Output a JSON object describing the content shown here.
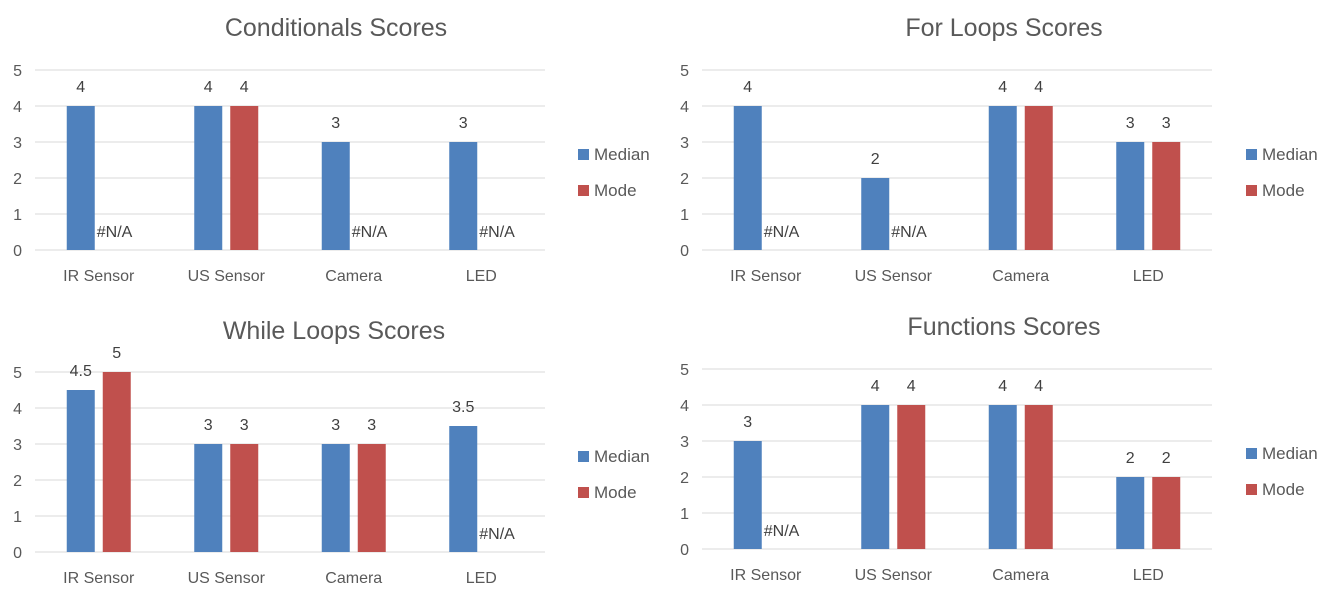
{
  "legend": {
    "median": "Median",
    "mode": "Mode"
  },
  "colors": {
    "median": "#4f81bd",
    "mode": "#c0504d"
  },
  "na_label": "#N/A",
  "chart_data": [
    {
      "type": "bar",
      "title": "Conditionals Scores",
      "categories": [
        "IR Sensor",
        "US Sensor",
        "Camera",
        "LED"
      ],
      "series": [
        {
          "name": "Median",
          "values": [
            4,
            4,
            3,
            3
          ]
        },
        {
          "name": "Mode",
          "values": [
            null,
            4,
            null,
            null
          ]
        }
      ],
      "ylim": [
        0,
        5
      ],
      "yticks": [
        0,
        1,
        2,
        3,
        4,
        5
      ],
      "grid": true,
      "legend_position": "right"
    },
    {
      "type": "bar",
      "title": "For Loops Scores",
      "categories": [
        "IR Sensor",
        "US Sensor",
        "Camera",
        "LED"
      ],
      "series": [
        {
          "name": "Median",
          "values": [
            4,
            2,
            4,
            3
          ]
        },
        {
          "name": "Mode",
          "values": [
            null,
            null,
            4,
            3
          ]
        }
      ],
      "ylim": [
        0,
        5
      ],
      "yticks": [
        0,
        1,
        2,
        3,
        4,
        5
      ],
      "grid": true,
      "legend_position": "right"
    },
    {
      "type": "bar",
      "title": "While Loops Scores",
      "categories": [
        "IR Sensor",
        "US Sensor",
        "Camera",
        "LED"
      ],
      "series": [
        {
          "name": "Median",
          "values": [
            4.5,
            3,
            3,
            3.5
          ]
        },
        {
          "name": "Mode",
          "values": [
            5,
            3,
            3,
            null
          ]
        }
      ],
      "ylim": [
        0,
        5
      ],
      "yticks": [
        0,
        1,
        2,
        3,
        4,
        5
      ],
      "grid": true,
      "legend_position": "right"
    },
    {
      "type": "bar",
      "title": "Functions Scores",
      "categories": [
        "IR Sensor",
        "US Sensor",
        "Camera",
        "LED"
      ],
      "series": [
        {
          "name": "Median",
          "values": [
            3,
            4,
            4,
            2
          ]
        },
        {
          "name": "Mode",
          "values": [
            null,
            4,
            4,
            2
          ]
        }
      ],
      "ylim": [
        0,
        5
      ],
      "yticks": [
        0,
        1,
        2,
        3,
        4,
        5
      ],
      "grid": true,
      "legend_position": "right"
    }
  ]
}
